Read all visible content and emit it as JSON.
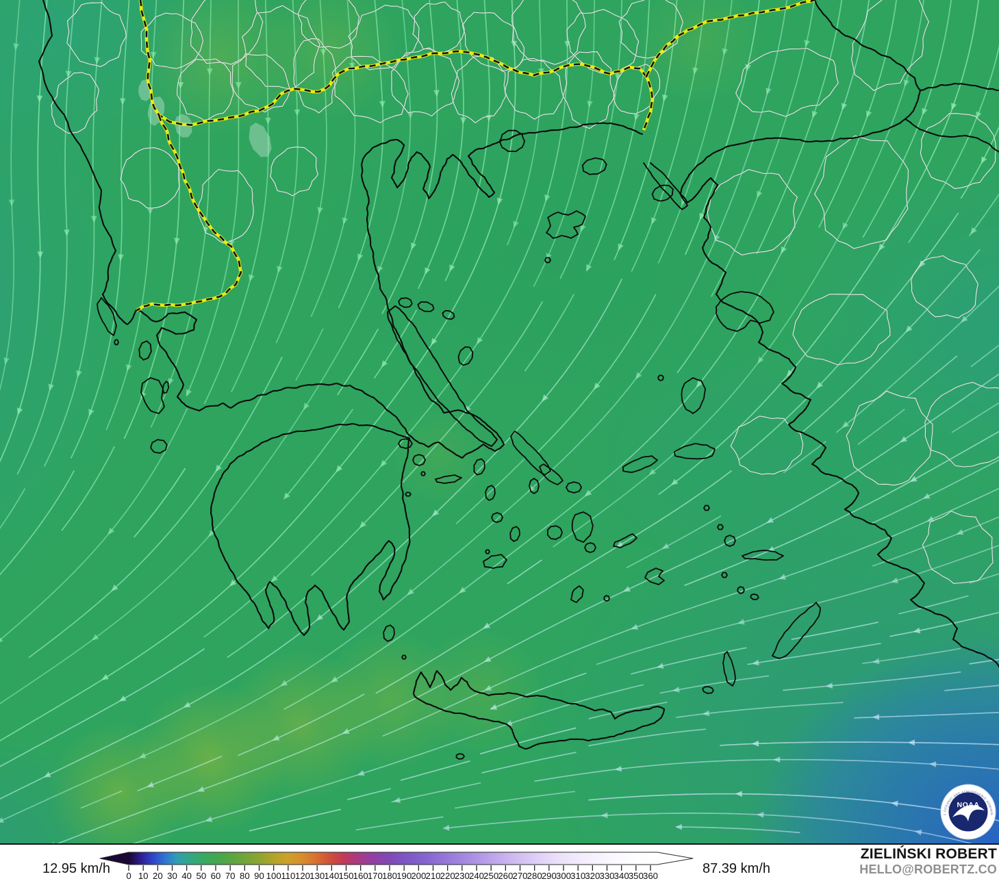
{
  "legend": {
    "min_label": "12.95 km/h",
    "max_label": "87.39 km/h",
    "ticks": [
      0,
      10,
      20,
      30,
      40,
      50,
      60,
      70,
      80,
      90,
      100,
      110,
      120,
      130,
      140,
      150,
      160,
      170,
      180,
      190,
      200,
      210,
      220,
      230,
      240,
      250,
      260,
      270,
      280,
      290,
      300,
      310,
      320,
      330,
      340,
      350,
      360
    ],
    "gradient_stops": [
      {
        "v": 0,
        "c": "#1b0733"
      },
      {
        "v": 8,
        "c": "#2d1d8e"
      },
      {
        "v": 16,
        "c": "#3040c8"
      },
      {
        "v": 25,
        "c": "#2f74d2"
      },
      {
        "v": 33,
        "c": "#2f9cb4"
      },
      {
        "v": 42,
        "c": "#33a786"
      },
      {
        "v": 52,
        "c": "#38a862"
      },
      {
        "v": 62,
        "c": "#46a64c"
      },
      {
        "v": 75,
        "c": "#63a63e"
      },
      {
        "v": 88,
        "c": "#87a434"
      },
      {
        "v": 100,
        "c": "#b2a429"
      },
      {
        "v": 110,
        "c": "#cda12b"
      },
      {
        "v": 119,
        "c": "#d78e2d"
      },
      {
        "v": 128,
        "c": "#d9742f"
      },
      {
        "v": 138,
        "c": "#cf5338"
      },
      {
        "v": 148,
        "c": "#c13a57"
      },
      {
        "v": 158,
        "c": "#aa3a82"
      },
      {
        "v": 168,
        "c": "#923fa2"
      },
      {
        "v": 180,
        "c": "#8149b6"
      },
      {
        "v": 192,
        "c": "#7d57c6"
      },
      {
        "v": 207,
        "c": "#8868d0"
      },
      {
        "v": 222,
        "c": "#997bdb"
      },
      {
        "v": 237,
        "c": "#ab90e3"
      },
      {
        "v": 252,
        "c": "#bfa6ec"
      },
      {
        "v": 267,
        "c": "#d0bcf2"
      },
      {
        "v": 282,
        "c": "#dfd0f7"
      },
      {
        "v": 297,
        "c": "#ebe1fa"
      },
      {
        "v": 315,
        "c": "#f4eefd"
      },
      {
        "v": 335,
        "c": "#fbf9ff"
      },
      {
        "v": 360,
        "c": "#ffffff"
      }
    ]
  },
  "attribution": {
    "name": "ZIELIŃSKI ROBERT",
    "email": "HELLO@ROBERTZ.CO"
  },
  "noaa_logo": {
    "acronym": "NOAA",
    "ring_top": "NATIONAL OCEANIC AND ATMOSPHERIC ADMINISTRATION",
    "ring_bottom": "U.S. DEPARTMENT OF COMMERCE"
  },
  "colors": {
    "coast": "#0b0b0b",
    "admin_line": "#ffffff",
    "border_dash_under": "#f0ee10",
    "border_dash_over": "#121212",
    "flow_green": "#96f0b4",
    "flow_blue": "#cde8fa",
    "logo_navy": "#19276f",
    "blue_corner": "#2a58da",
    "base_green": "#2ea45f"
  }
}
